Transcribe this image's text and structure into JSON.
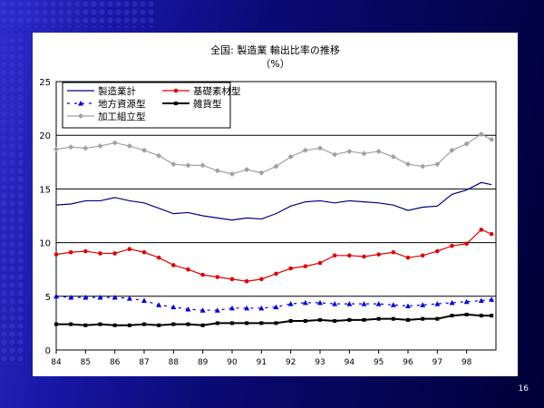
{
  "slide": {
    "page_number": "16"
  },
  "chart_data": {
    "type": "line",
    "title": "全国: 製造業 輸出比率の推移",
    "subtitle": "（%）",
    "ylim": [
      0,
      25
    ],
    "yticks": [
      "0",
      "5",
      "10",
      "15",
      "20",
      "25"
    ],
    "xlim": [
      1984,
      1999
    ],
    "xticks": [
      "84",
      "85",
      "86",
      "87",
      "88",
      "89",
      "90",
      "91",
      "92",
      "93",
      "94",
      "95",
      "96",
      "97",
      "98"
    ],
    "grid": "horizontal",
    "legend_position": "top-left",
    "series": [
      {
        "name": "製造業計",
        "color": "#000080",
        "marker": "none",
        "values": [
          [
            1984,
            13.5
          ],
          [
            1984.5,
            13.6
          ],
          [
            1985,
            13.9
          ],
          [
            1985.5,
            13.9
          ],
          [
            1986,
            14.2
          ],
          [
            1986.5,
            13.9
          ],
          [
            1987,
            13.7
          ],
          [
            1987.5,
            13.2
          ],
          [
            1988,
            12.7
          ],
          [
            1988.5,
            12.8
          ],
          [
            1989,
            12.5
          ],
          [
            1989.5,
            12.3
          ],
          [
            1990,
            12.1
          ],
          [
            1990.5,
            12.3
          ],
          [
            1991,
            12.2
          ],
          [
            1991.5,
            12.7
          ],
          [
            1992,
            13.4
          ],
          [
            1992.5,
            13.8
          ],
          [
            1993,
            13.9
          ],
          [
            1993.5,
            13.7
          ],
          [
            1994,
            13.9
          ],
          [
            1994.5,
            13.8
          ],
          [
            1995,
            13.7
          ],
          [
            1995.5,
            13.5
          ],
          [
            1996,
            13.0
          ],
          [
            1996.5,
            13.3
          ],
          [
            1997,
            13.4
          ],
          [
            1997.5,
            14.5
          ],
          [
            1998,
            14.9
          ],
          [
            1998.5,
            15.6
          ],
          [
            1998.85,
            15.4
          ]
        ]
      },
      {
        "name": "基礎素材型",
        "color": "#e00000",
        "marker": "circle",
        "values": [
          [
            1984,
            8.9
          ],
          [
            1984.5,
            9.1
          ],
          [
            1985,
            9.2
          ],
          [
            1985.5,
            9.0
          ],
          [
            1986,
            9.0
          ],
          [
            1986.5,
            9.4
          ],
          [
            1987,
            9.1
          ],
          [
            1987.5,
            8.6
          ],
          [
            1988,
            7.9
          ],
          [
            1988.5,
            7.5
          ],
          [
            1989,
            7.0
          ],
          [
            1989.5,
            6.8
          ],
          [
            1990,
            6.6
          ],
          [
            1990.5,
            6.4
          ],
          [
            1991,
            6.6
          ],
          [
            1991.5,
            7.1
          ],
          [
            1992,
            7.6
          ],
          [
            1992.5,
            7.8
          ],
          [
            1993,
            8.1
          ],
          [
            1993.5,
            8.8
          ],
          [
            1994,
            8.8
          ],
          [
            1994.5,
            8.7
          ],
          [
            1995,
            8.9
          ],
          [
            1995.5,
            9.1
          ],
          [
            1996,
            8.6
          ],
          [
            1996.5,
            8.8
          ],
          [
            1997,
            9.2
          ],
          [
            1997.5,
            9.7
          ],
          [
            1998,
            9.9
          ],
          [
            1998.5,
            11.2
          ],
          [
            1998.85,
            10.8
          ]
        ]
      },
      {
        "name": "地方資源型",
        "color": "#0000e0",
        "marker": "triangle",
        "values": [
          [
            1984,
            5.0
          ],
          [
            1984.5,
            4.9
          ],
          [
            1985,
            4.9
          ],
          [
            1985.5,
            4.9
          ],
          [
            1986,
            4.9
          ],
          [
            1986.5,
            4.8
          ],
          [
            1987,
            4.6
          ],
          [
            1987.5,
            4.2
          ],
          [
            1988,
            4.0
          ],
          [
            1988.5,
            3.8
          ],
          [
            1989,
            3.7
          ],
          [
            1989.5,
            3.7
          ],
          [
            1990,
            3.9
          ],
          [
            1990.5,
            3.9
          ],
          [
            1991,
            3.9
          ],
          [
            1991.5,
            4.0
          ],
          [
            1992,
            4.3
          ],
          [
            1992.5,
            4.4
          ],
          [
            1993,
            4.4
          ],
          [
            1993.5,
            4.3
          ],
          [
            1994,
            4.3
          ],
          [
            1994.5,
            4.3
          ],
          [
            1995,
            4.3
          ],
          [
            1995.5,
            4.2
          ],
          [
            1996,
            4.1
          ],
          [
            1996.5,
            4.2
          ],
          [
            1997,
            4.3
          ],
          [
            1997.5,
            4.4
          ],
          [
            1998,
            4.5
          ],
          [
            1998.5,
            4.6
          ],
          [
            1998.85,
            4.7
          ]
        ]
      },
      {
        "name": "雑貨型",
        "color": "#000000",
        "marker": "square",
        "values": [
          [
            1984,
            2.4
          ],
          [
            1984.5,
            2.4
          ],
          [
            1985,
            2.3
          ],
          [
            1985.5,
            2.4
          ],
          [
            1986,
            2.3
          ],
          [
            1986.5,
            2.3
          ],
          [
            1987,
            2.4
          ],
          [
            1987.5,
            2.3
          ],
          [
            1988,
            2.4
          ],
          [
            1988.5,
            2.4
          ],
          [
            1989,
            2.3
          ],
          [
            1989.5,
            2.5
          ],
          [
            1990,
            2.5
          ],
          [
            1990.5,
            2.5
          ],
          [
            1991,
            2.5
          ],
          [
            1991.5,
            2.5
          ],
          [
            1992,
            2.7
          ],
          [
            1992.5,
            2.7
          ],
          [
            1993,
            2.8
          ],
          [
            1993.5,
            2.7
          ],
          [
            1994,
            2.8
          ],
          [
            1994.5,
            2.8
          ],
          [
            1995,
            2.9
          ],
          [
            1995.5,
            2.9
          ],
          [
            1996,
            2.8
          ],
          [
            1996.5,
            2.9
          ],
          [
            1997,
            2.9
          ],
          [
            1997.5,
            3.2
          ],
          [
            1998,
            3.3
          ],
          [
            1998.5,
            3.2
          ],
          [
            1998.85,
            3.2
          ]
        ]
      },
      {
        "name": "加工組立型",
        "color": "#a0a0a0",
        "marker": "diamond",
        "values": [
          [
            1984,
            18.7
          ],
          [
            1984.5,
            18.9
          ],
          [
            1985,
            18.8
          ],
          [
            1985.5,
            19.0
          ],
          [
            1986,
            19.3
          ],
          [
            1986.5,
            19.0
          ],
          [
            1987,
            18.6
          ],
          [
            1987.5,
            18.1
          ],
          [
            1988,
            17.3
          ],
          [
            1988.5,
            17.2
          ],
          [
            1989,
            17.2
          ],
          [
            1989.5,
            16.7
          ],
          [
            1990,
            16.4
          ],
          [
            1990.5,
            16.8
          ],
          [
            1991,
            16.5
          ],
          [
            1991.5,
            17.1
          ],
          [
            1992,
            18.0
          ],
          [
            1992.5,
            18.6
          ],
          [
            1993,
            18.8
          ],
          [
            1993.5,
            18.2
          ],
          [
            1994,
            18.5
          ],
          [
            1994.5,
            18.3
          ],
          [
            1995,
            18.5
          ],
          [
            1995.5,
            18.0
          ],
          [
            1996,
            17.3
          ],
          [
            1996.5,
            17.1
          ],
          [
            1997,
            17.3
          ],
          [
            1997.5,
            18.6
          ],
          [
            1998,
            19.2
          ],
          [
            1998.5,
            20.1
          ],
          [
            1998.85,
            19.6
          ]
        ]
      }
    ]
  }
}
